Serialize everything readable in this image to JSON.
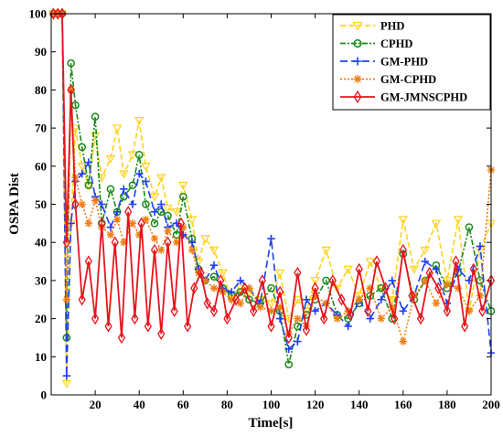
{
  "chart_data": {
    "type": "line",
    "title": "",
    "xlabel": "Time[s]",
    "ylabel": "OSPA Dist",
    "xlim": [
      0,
      200
    ],
    "ylim": [
      0,
      100
    ],
    "xticks": [
      20,
      40,
      60,
      80,
      100,
      120,
      140,
      160,
      180,
      200
    ],
    "yticks": [
      0,
      10,
      20,
      30,
      40,
      50,
      60,
      70,
      80,
      90,
      100
    ],
    "grid": false,
    "legend_position": "top-right",
    "series": [
      {
        "name": "PHD",
        "color": "#ffd21e",
        "dash": "6,3",
        "marker": "triangle-down",
        "x": [
          1,
          3,
          5,
          7,
          9,
          11,
          14,
          17,
          20,
          23,
          27,
          30,
          33,
          37,
          40,
          43,
          47,
          50,
          53,
          57,
          60,
          64,
          67,
          70,
          74,
          78,
          82,
          86,
          90,
          95,
          100,
          104,
          108,
          112,
          116,
          120,
          125,
          130,
          135,
          140,
          145,
          150,
          155,
          160,
          165,
          170,
          175,
          180,
          185,
          190,
          195,
          200
        ],
        "y": [
          100,
          100,
          100,
          3,
          45,
          70,
          60,
          55,
          68,
          57,
          62,
          70,
          58,
          63,
          72,
          60,
          52,
          57,
          49,
          48,
          55,
          46,
          35,
          41,
          38,
          32,
          25,
          28,
          27,
          25,
          24,
          32,
          20,
          25,
          22,
          30,
          38,
          28,
          33,
          26,
          35,
          28,
          25,
          46,
          33,
          38,
          45,
          30,
          46,
          22,
          38,
          45
        ]
      },
      {
        "name": "CPHD",
        "color": "#1a8a1a",
        "dash": "6,2,2,2",
        "marker": "circle",
        "x": [
          1,
          3,
          5,
          7,
          9,
          11,
          14,
          17,
          20,
          23,
          27,
          30,
          33,
          37,
          40,
          43,
          47,
          50,
          53,
          57,
          60,
          64,
          67,
          70,
          74,
          78,
          82,
          86,
          90,
          95,
          100,
          104,
          108,
          112,
          116,
          120,
          125,
          130,
          135,
          140,
          145,
          150,
          155,
          160,
          165,
          170,
          175,
          180,
          185,
          190,
          195,
          200
        ],
        "y": [
          100,
          100,
          100,
          15,
          87,
          76,
          65,
          55,
          73,
          45,
          54,
          48,
          52,
          55,
          63,
          50,
          45,
          48,
          47,
          42,
          52,
          41,
          33,
          30,
          31,
          28,
          26,
          27,
          25,
          24,
          28,
          22,
          8,
          18,
          21,
          25,
          30,
          21,
          20,
          24,
          26,
          28,
          20,
          37,
          25,
          30,
          34,
          28,
          32,
          44,
          30,
          22
        ]
      },
      {
        "name": "GM-PHD",
        "color": "#1f3ff5",
        "dash": "8,4",
        "marker": "plus",
        "x": [
          1,
          3,
          5,
          7,
          9,
          11,
          14,
          17,
          20,
          23,
          27,
          30,
          33,
          37,
          40,
          43,
          47,
          50,
          53,
          57,
          60,
          64,
          67,
          70,
          74,
          78,
          82,
          86,
          90,
          95,
          100,
          104,
          108,
          112,
          116,
          120,
          125,
          130,
          135,
          140,
          145,
          150,
          155,
          160,
          165,
          170,
          175,
          180,
          185,
          190,
          195,
          200
        ],
        "y": [
          100,
          100,
          100,
          5,
          45,
          56,
          58,
          61,
          52,
          50,
          44,
          48,
          54,
          50,
          58,
          56,
          48,
          50,
          44,
          45,
          42,
          40,
          33,
          30,
          34,
          28,
          27,
          30,
          28,
          24,
          41,
          20,
          12,
          14,
          25,
          22,
          24,
          21,
          18,
          25,
          20,
          25,
          30,
          22,
          26,
          35,
          33,
          24,
          33,
          30,
          39,
          11
        ]
      },
      {
        "name": "GM-CPHD",
        "color": "#f07d14",
        "dash": "2,2",
        "marker": "asterisk",
        "x": [
          1,
          3,
          5,
          7,
          9,
          11,
          14,
          17,
          20,
          23,
          27,
          30,
          33,
          37,
          40,
          43,
          47,
          50,
          53,
          57,
          60,
          64,
          67,
          70,
          74,
          78,
          82,
          86,
          90,
          95,
          100,
          104,
          108,
          112,
          116,
          120,
          125,
          130,
          135,
          140,
          145,
          150,
          155,
          160,
          165,
          170,
          175,
          180,
          185,
          190,
          195,
          200
        ],
        "y": [
          100,
          100,
          100,
          25,
          80,
          57,
          50,
          45,
          51,
          44,
          42,
          46,
          40,
          45,
          42,
          46,
          41,
          38,
          43,
          40,
          44,
          38,
          32,
          30,
          28,
          27,
          25,
          24,
          28,
          23,
          22,
          23,
          16,
          20,
          18,
          26,
          24,
          20,
          22,
          25,
          28,
          20,
          23,
          14,
          26,
          30,
          24,
          29,
          28,
          22,
          26,
          59
        ]
      },
      {
        "name": "GM-JMNSCPHD",
        "color": "#e8141c",
        "dash": "",
        "marker": "diamond",
        "x": [
          1,
          3,
          5,
          7,
          9,
          11,
          14,
          17,
          20,
          23,
          26,
          29,
          32,
          35,
          38,
          41,
          44,
          47,
          50,
          53,
          56,
          59,
          62,
          65,
          68,
          71,
          74,
          77,
          80,
          84,
          88,
          92,
          96,
          100,
          104,
          108,
          112,
          116,
          120,
          124,
          128,
          132,
          136,
          140,
          144,
          148,
          152,
          156,
          160,
          164,
          168,
          172,
          176,
          180,
          184,
          188,
          192,
          196,
          200
        ],
        "y": [
          100,
          100,
          100,
          40,
          80,
          50,
          25,
          35,
          20,
          45,
          18,
          40,
          15,
          48,
          20,
          45,
          18,
          38,
          16,
          40,
          22,
          45,
          18,
          28,
          32,
          24,
          22,
          30,
          20,
          25,
          28,
          22,
          30,
          18,
          27,
          15,
          32,
          17,
          28,
          20,
          30,
          25,
          21,
          33,
          22,
          35,
          28,
          20,
          38,
          26,
          20,
          32,
          28,
          22,
          35,
          18,
          33,
          22,
          30
        ]
      }
    ]
  }
}
